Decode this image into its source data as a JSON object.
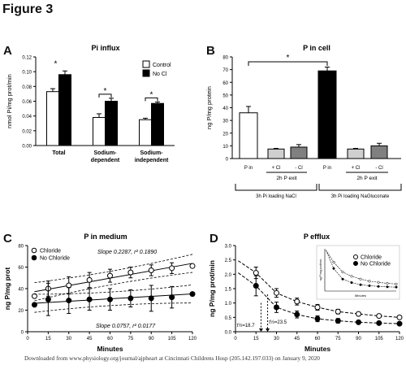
{
  "figure_title": "Figure 3",
  "footer_text": "Downloaded from www.physiology.org/journal/ajpheart at Cincinnati Childrens Hosp (205.142.197.033) on January 9, 2020",
  "chart_data": [
    {
      "panel": "A",
      "type": "bar",
      "title": "Pi influx",
      "ylabel": "nmol Pi/mg prot/min",
      "ylim": [
        0,
        0.12
      ],
      "y_ticks": [
        "0.00",
        "0.02",
        "0.04",
        "0.06",
        "0.08",
        "0.10",
        "0.12"
      ],
      "categories": [
        "Total",
        "Sodium-dependent",
        "Sodium-independent"
      ],
      "category_labels": [
        [
          "Total"
        ],
        [
          "Sodium-",
          "dependent"
        ],
        [
          "Sodium-",
          "independent"
        ]
      ],
      "series": [
        {
          "name": "Control",
          "color": "#ffffff",
          "values": [
            0.073,
            0.038,
            0.035
          ],
          "errors": [
            0.004,
            0.005,
            0.002
          ]
        },
        {
          "name": "No Cl",
          "color": "#000000",
          "values": [
            0.096,
            0.06,
            0.057
          ],
          "errors": [
            0.005,
            0.004,
            0.002
          ]
        }
      ],
      "significance": [
        "*",
        "*",
        "*"
      ],
      "legend_position": "top-right"
    },
    {
      "panel": "B",
      "type": "bar",
      "title": "P in cell",
      "ylabel": "ng P/mg protein",
      "ylim": [
        0,
        80
      ],
      "y_ticks": [
        "0",
        "10",
        "20",
        "30",
        "40",
        "50",
        "60",
        "70",
        "80"
      ],
      "bar_labels": [
        "P in",
        "+ Cl",
        "- Cl",
        "P in",
        "+ Cl",
        "- Cl"
      ],
      "values": [
        36,
        7.5,
        9,
        69,
        7.5,
        10
      ],
      "errors": [
        5,
        0.5,
        2,
        3,
        0.5,
        2
      ],
      "colors": [
        "#ffffff",
        "#cfcfcf",
        "#808080",
        "#000000",
        "#cfcfcf",
        "#808080"
      ],
      "group_labels": [
        "2h P exit",
        "2h P exit"
      ],
      "loading_labels": [
        "3h Pi loading NaCl",
        "3h Pi loading NaGluconate"
      ],
      "significance": "*"
    },
    {
      "panel": "C",
      "type": "scatter",
      "title": "P in medium",
      "xlabel": "Minutes",
      "ylabel": "ng P/mg prot",
      "xlim": [
        0,
        120
      ],
      "ylim": [
        0,
        80
      ],
      "x_ticks": [
        "0",
        "15",
        "30",
        "45",
        "60",
        "75",
        "90",
        "105",
        "120"
      ],
      "y_ticks": [
        "0",
        "20",
        "40",
        "60",
        "80"
      ],
      "series": [
        {
          "name": "Chloride",
          "marker": "open-circle",
          "x": [
            5,
            15,
            30,
            45,
            60,
            75,
            90,
            105,
            120
          ],
          "y": [
            33,
            40,
            43,
            48,
            52,
            55,
            57,
            59,
            61
          ],
          "errors": [
            0,
            7,
            8,
            7,
            6,
            5,
            5,
            5,
            0
          ],
          "fit": {
            "slope": 0.2287,
            "intercept": 36,
            "label": "Slope 0.2287, r² 0.1890"
          }
        },
        {
          "name": "No Chloride",
          "marker": "filled-circle",
          "x": [
            5,
            15,
            30,
            45,
            60,
            75,
            90,
            105,
            120
          ],
          "y": [
            25,
            30,
            29,
            30,
            30,
            31,
            31,
            32,
            35
          ],
          "errors": [
            0,
            15,
            12,
            10,
            10,
            8,
            12,
            10,
            0
          ],
          "fit": {
            "slope": 0.0757,
            "intercept": 26,
            "label": "Slope 0.0757, r² 0.0177"
          }
        }
      ],
      "legend_position": "top-left"
    },
    {
      "panel": "D",
      "type": "scatter",
      "title": "P efflux",
      "xlabel": "Minutes",
      "ylabel": "ng P/mg prot/min",
      "xlim": [
        0,
        120
      ],
      "ylim": [
        0,
        3.0
      ],
      "x_ticks": [
        "0",
        "15",
        "30",
        "45",
        "60",
        "75",
        "90",
        "105",
        "120"
      ],
      "y_ticks": [
        "0.0",
        "0.5",
        "1.0",
        "1.5",
        "2.0",
        "2.5",
        "3.0"
      ],
      "series": [
        {
          "name": "Chloride",
          "marker": "open-circle",
          "x": [
            15,
            30,
            45,
            60,
            75,
            90,
            105,
            120
          ],
          "y": [
            2.05,
            1.35,
            1.05,
            0.85,
            0.7,
            0.62,
            0.55,
            0.5
          ],
          "errors": [
            0.2,
            0.15,
            0.12,
            0.1,
            0.08,
            0.06,
            0.06,
            0.06
          ]
        },
        {
          "name": "No Chloride",
          "marker": "filled-circle",
          "x": [
            15,
            30,
            45,
            60,
            75,
            90,
            105,
            120
          ],
          "y": [
            1.6,
            0.85,
            0.6,
            0.45,
            0.38,
            0.33,
            0.3,
            0.28
          ],
          "errors": [
            0.35,
            0.18,
            0.12,
            0.1,
            0.08,
            0.06,
            0.05,
            0.05
          ]
        }
      ],
      "halflife_labels": [
        "t½=18.7",
        "t½=23.5"
      ],
      "inset": {
        "ylabel": "ng P/mg prot/min",
        "xlabel": "Minutes"
      },
      "legend_position": "top-right"
    }
  ]
}
